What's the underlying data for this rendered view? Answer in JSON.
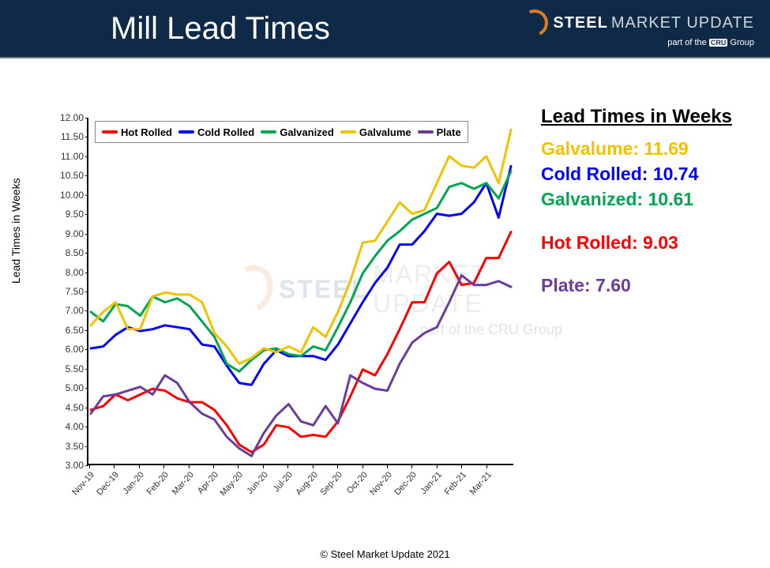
{
  "header": {
    "title": "Mill Lead Times",
    "brand_steel": "STEEL",
    "brand_market": "MARKET UPDATE",
    "brand_sub_prefix": "part of the",
    "brand_sub_box": "CRU",
    "brand_sub_suffix": "Group"
  },
  "chart": {
    "type": "line",
    "y_title": "Lead Times in Weeks",
    "ylim": [
      3.0,
      12.0
    ],
    "ytick_step": 0.5,
    "xlabels": [
      "Nov-19",
      "Dec-19",
      "Jan-20",
      "Feb-20",
      "Mar-20",
      "Apr-20",
      "May-20",
      "Jun-20",
      "Jul-20",
      "Aug-20",
      "Sep-20",
      "Oct-20",
      "Nov-20",
      "Dec-20",
      "Jan-21",
      "Feb-21",
      "Mar-21"
    ],
    "n_points": 35,
    "xlabel_step": 2,
    "background_color": "#ffffff",
    "axis_color": "#000000",
    "tick_fontsize": 12,
    "line_width": 3,
    "series": [
      {
        "name": "Hot Rolled",
        "color": "#ff0000",
        "values": [
          4.4,
          4.5,
          4.8,
          4.65,
          4.8,
          4.95,
          4.9,
          4.7,
          4.6,
          4.6,
          4.4,
          4.0,
          3.5,
          3.3,
          3.5,
          4.0,
          3.95,
          3.7,
          3.75,
          3.7,
          4.1,
          4.75,
          5.45,
          5.3,
          5.85,
          6.5,
          7.2,
          7.2,
          7.95,
          8.25,
          7.65,
          7.7,
          8.35,
          8.35,
          9.03
        ]
      },
      {
        "name": "Cold Rolled",
        "color": "#0000ff",
        "values": [
          6.0,
          6.05,
          6.35,
          6.55,
          6.45,
          6.5,
          6.6,
          6.55,
          6.5,
          6.1,
          6.05,
          5.55,
          5.1,
          5.05,
          5.6,
          5.95,
          5.8,
          5.8,
          5.8,
          5.7,
          6.1,
          6.65,
          7.2,
          7.7,
          8.1,
          8.7,
          8.7,
          9.05,
          9.5,
          9.45,
          9.5,
          9.8,
          10.3,
          9.4,
          10.74
        ]
      },
      {
        "name": "Galvanized",
        "color": "#00a651",
        "values": [
          6.95,
          6.7,
          7.15,
          7.1,
          6.85,
          7.35,
          7.2,
          7.3,
          7.1,
          6.7,
          6.3,
          5.6,
          5.4,
          5.7,
          5.95,
          6.0,
          5.85,
          5.8,
          6.05,
          5.95,
          6.55,
          7.2,
          7.95,
          8.4,
          8.8,
          9.05,
          9.35,
          9.5,
          9.65,
          10.2,
          10.3,
          10.15,
          10.3,
          9.9,
          10.61
        ]
      },
      {
        "name": "Galvalume",
        "color": "#f2c200",
        "values": [
          6.6,
          6.95,
          7.2,
          6.5,
          6.5,
          7.35,
          7.45,
          7.4,
          7.4,
          7.2,
          6.4,
          6.05,
          5.6,
          5.75,
          6.0,
          5.9,
          6.05,
          5.9,
          6.55,
          6.3,
          6.95,
          7.75,
          8.75,
          8.8,
          9.3,
          9.8,
          9.5,
          9.6,
          10.3,
          11.0,
          10.75,
          10.7,
          11.0,
          10.3,
          11.69
        ]
      },
      {
        "name": "Plate",
        "color": "#6a3d9a",
        "values": [
          4.3,
          4.75,
          4.8,
          4.9,
          5.0,
          4.8,
          5.3,
          5.1,
          4.6,
          4.3,
          4.15,
          3.7,
          3.4,
          3.2,
          3.8,
          4.25,
          4.55,
          4.1,
          4.0,
          4.5,
          4.05,
          5.3,
          5.1,
          4.95,
          4.9,
          5.6,
          6.15,
          6.4,
          6.55,
          7.2,
          7.9,
          7.65,
          7.65,
          7.75,
          7.6
        ]
      }
    ],
    "legend": {
      "order": [
        "Hot Rolled",
        "Cold Rolled",
        "Galvanized",
        "Galvalume",
        "Plate"
      ]
    }
  },
  "side": {
    "title": "Lead Times in Weeks",
    "lines": [
      {
        "label": "Galvalume",
        "value": "11.69",
        "color": "#f2c200"
      },
      {
        "label": "Cold Rolled",
        "value": "10.74",
        "color": "#0000ff"
      },
      {
        "label": "Galvanized",
        "value": "10.61",
        "color": "#00a651"
      },
      {
        "label": "Hot Rolled",
        "value": "9.03",
        "color": "#ff0000",
        "gap_before": true
      },
      {
        "label": "Plate",
        "value": "7.60",
        "color": "#6a3d9a",
        "gap_before": true
      }
    ]
  },
  "watermark": {
    "steel": "STEEL",
    "market": "MARKET UPDATE",
    "sub": "part of the CRU Group"
  },
  "copyright": "© Steel Market Update 2021"
}
